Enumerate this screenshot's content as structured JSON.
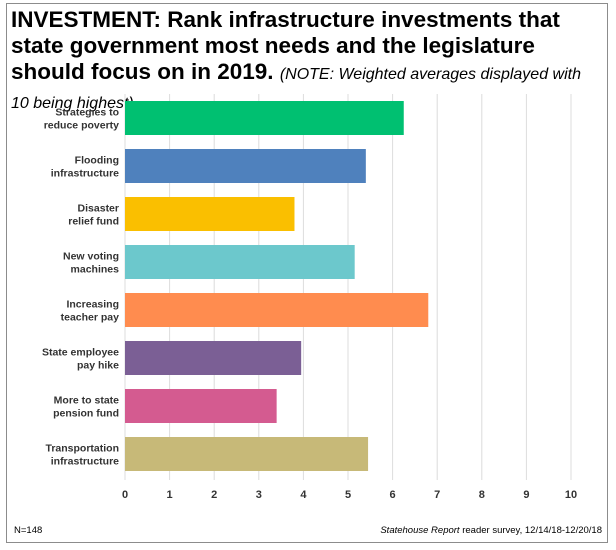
{
  "header": {
    "title": "INVESTMENT: Rank infrastructure investments that state government most needs and the  legislature should focus on in 2019.",
    "note": "(NOTE: Weighted averages displayed with 10 being highest)"
  },
  "footer": {
    "sample": "N=148",
    "source_title": "Statehouse Report",
    "source_rest": "reader survey, 12/14/18-12/20/18"
  },
  "chart_data": {
    "type": "bar",
    "orientation": "horizontal",
    "categories": [
      [
        "Strategies to",
        "reduce poverty"
      ],
      [
        "Flooding",
        "infrastructure"
      ],
      [
        "Disaster",
        "relief fund"
      ],
      [
        "New voting",
        "machines"
      ],
      [
        "Increasing",
        "teacher pay"
      ],
      [
        "State employee",
        "pay hike"
      ],
      [
        "More to state",
        "pension fund"
      ],
      [
        "Transportation",
        "infrastructure"
      ]
    ],
    "values": [
      6.25,
      5.4,
      3.8,
      5.15,
      6.8,
      3.95,
      3.4,
      5.45
    ],
    "colors": [
      "#00c071",
      "#4f81bd",
      "#fabf00",
      "#6cc8cc",
      "#ff8c4f",
      "#7b5f95",
      "#d45b90",
      "#c7b978"
    ],
    "xlim": [
      0,
      10
    ],
    "xticks": [
      "0",
      "1",
      "2",
      "3",
      "4",
      "5",
      "6",
      "7",
      "8",
      "9",
      "10"
    ],
    "grid": true
  }
}
